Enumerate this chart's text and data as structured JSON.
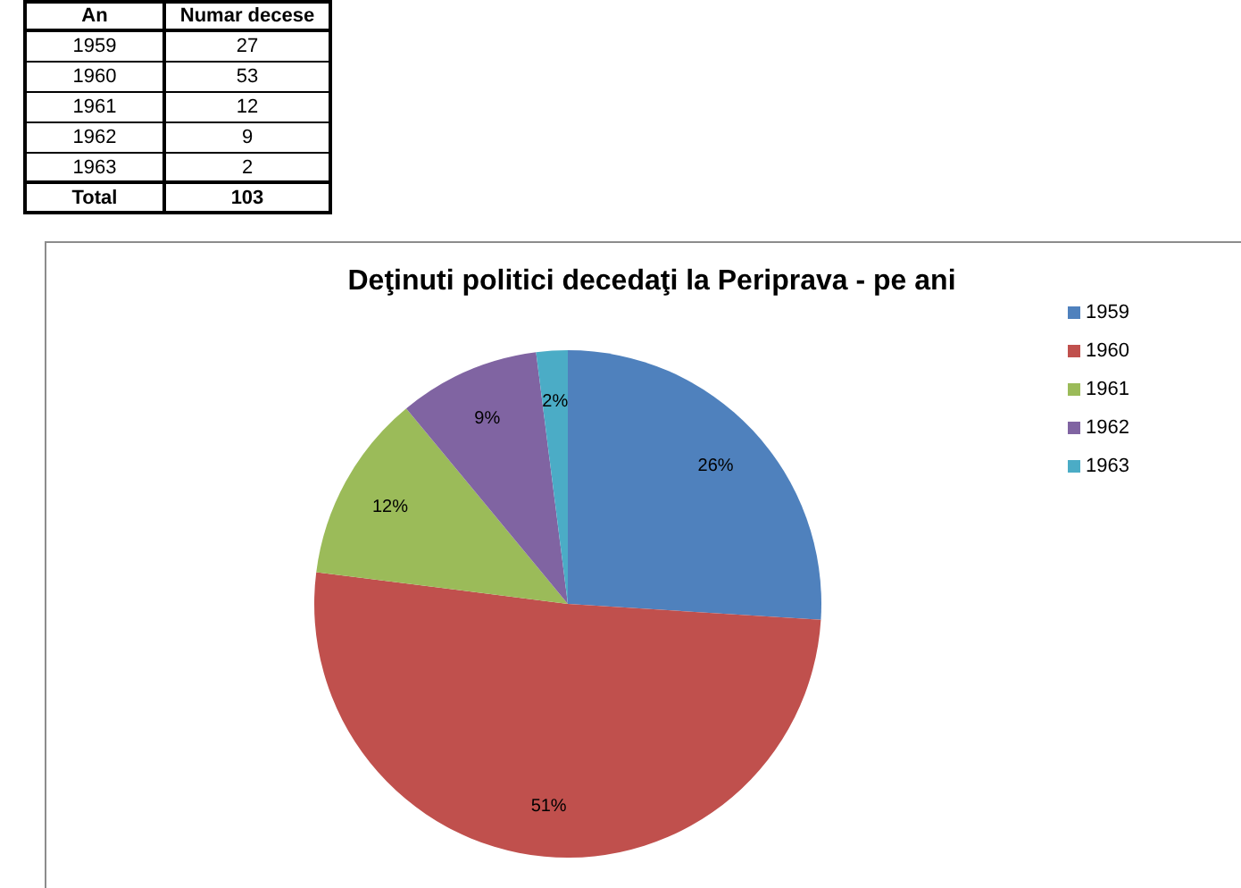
{
  "chart_data": {
    "type": "pie",
    "title": "Deţinuti politici decedaţi la Periprava - pe ani",
    "categories": [
      "1959",
      "1960",
      "1961",
      "1962",
      "1963"
    ],
    "values": [
      26,
      51,
      12,
      9,
      2
    ],
    "colors": [
      "#4f81bd",
      "#c0504d",
      "#9bbb59",
      "#8064a2",
      "#4bacc6"
    ],
    "value_labels": [
      "26%",
      "51%",
      "12%",
      "9%",
      "2%"
    ],
    "legend": "top right",
    "annotations": [
      "An",
      "Numar decese",
      "1959",
      "27",
      "1960",
      "53",
      "1961",
      "12",
      "1962",
      "9",
      "1963",
      "2",
      "Total",
      "103"
    ]
  }
}
